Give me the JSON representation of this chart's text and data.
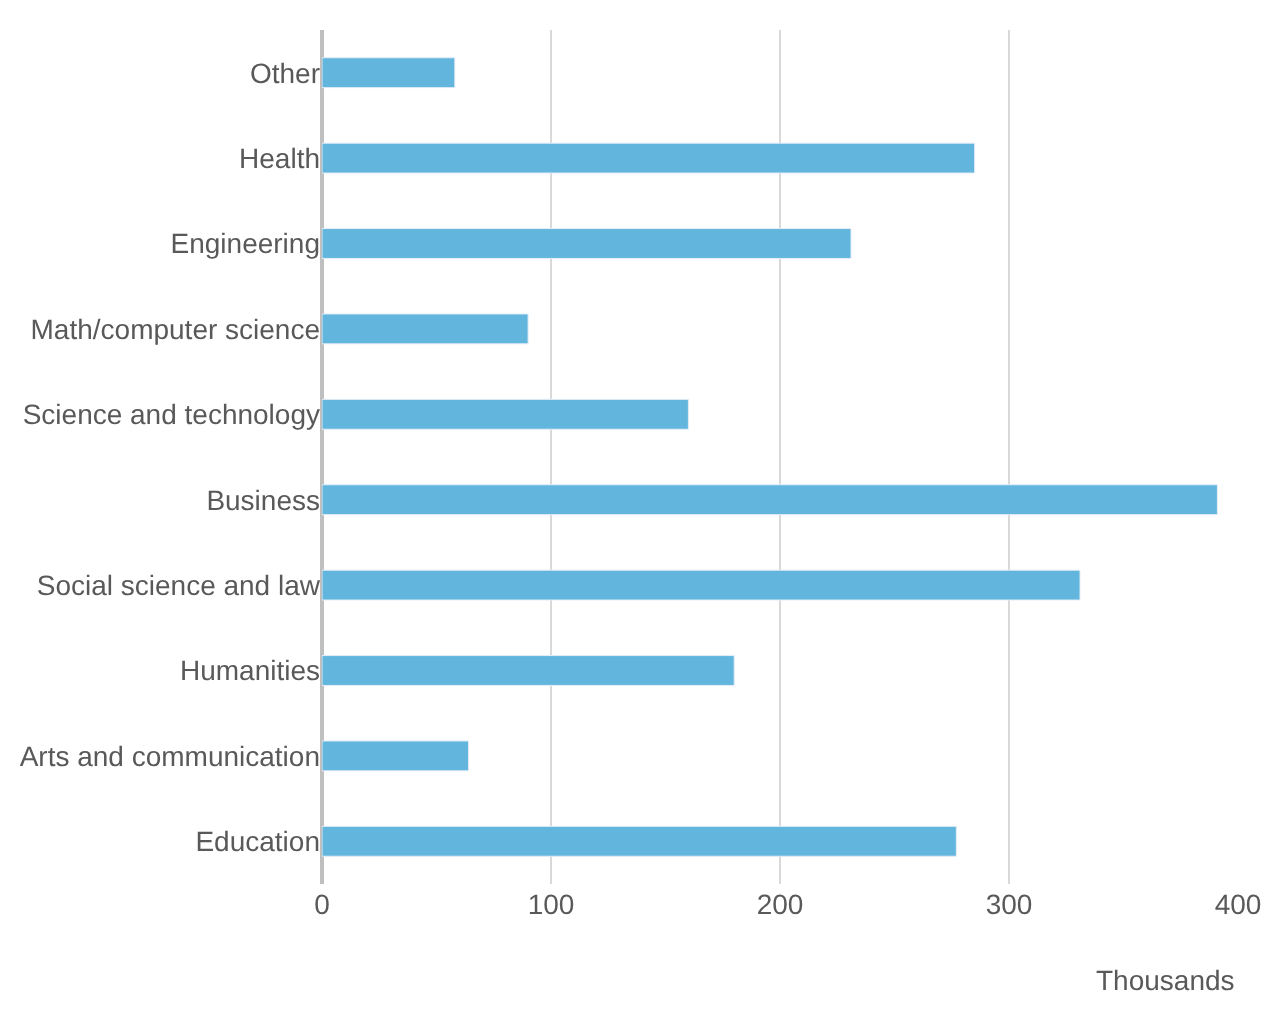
{
  "chart_data": {
    "type": "bar",
    "orientation": "horizontal",
    "xlabel": "Thousands",
    "categories": [
      "Other",
      "Health",
      "Engineering",
      "Math/computer science",
      "Science and technology",
      "Business",
      "Social science and law",
      "Humanities",
      "Arts and communication",
      "Education"
    ],
    "values": [
      58,
      285,
      231,
      90,
      160,
      391,
      331,
      180,
      64,
      277
    ],
    "color": "#62b6de",
    "xlim": [
      0,
      400
    ],
    "xticks": [
      0,
      100,
      200,
      300,
      400
    ],
    "grid": "x"
  }
}
